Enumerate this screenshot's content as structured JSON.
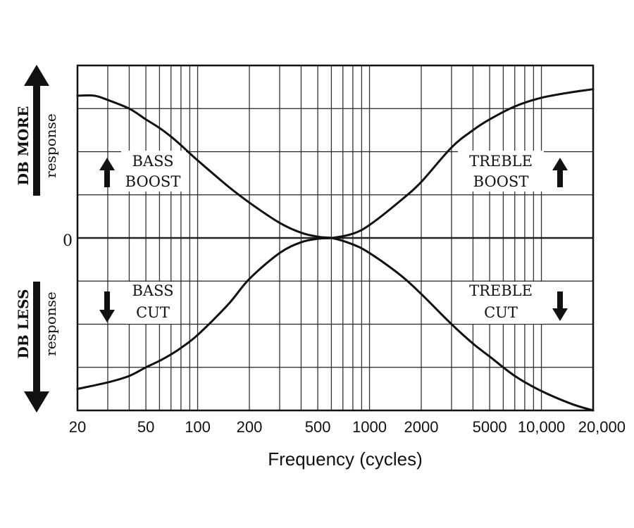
{
  "chart_data": {
    "type": "line",
    "xscale": "log",
    "xlim": [
      20,
      20000
    ],
    "ylim": [
      -4,
      4
    ],
    "grid": true,
    "xlabel": "Frequency (cycles)",
    "zero_label": "0",
    "x_tick_labels": [
      {
        "value": 20,
        "label": "20"
      },
      {
        "value": 50,
        "label": "50"
      },
      {
        "value": 100,
        "label": "100"
      },
      {
        "value": 200,
        "label": "200"
      },
      {
        "value": 500,
        "label": "500"
      },
      {
        "value": 1000,
        "label": "1000"
      },
      {
        "value": 2000,
        "label": "2000"
      },
      {
        "value": 5000,
        "label": "5000"
      },
      {
        "value": 10000,
        "label": "10,000"
      },
      {
        "value": 20000,
        "label": "20,000"
      }
    ],
    "x_grid_values": [
      20,
      30,
      40,
      50,
      60,
      70,
      80,
      90,
      100,
      200,
      300,
      400,
      500,
      600,
      700,
      800,
      900,
      1000,
      2000,
      3000,
      4000,
      5000,
      6000,
      7000,
      8000,
      9000,
      10000,
      20000
    ],
    "y_grid_values": [
      -4,
      -3,
      -2,
      -1,
      0,
      1,
      2,
      3,
      4
    ],
    "y_axis_upper": {
      "line1": "DB MORE",
      "line2": "response"
    },
    "y_axis_lower": {
      "line1": "DB LESS",
      "line2": "response"
    },
    "series": [
      {
        "name": "bass-boost",
        "x": [
          20,
          25,
          30,
          40,
          50,
          60,
          70,
          80,
          100,
          150,
          200,
          300,
          400,
          500,
          600
        ],
        "y": [
          3.3,
          3.3,
          3.2,
          3.0,
          2.75,
          2.55,
          2.35,
          2.15,
          1.8,
          1.2,
          0.82,
          0.35,
          0.12,
          0.03,
          0
        ]
      },
      {
        "name": "bass-cut",
        "x": [
          20,
          30,
          40,
          50,
          60,
          70,
          80,
          100,
          150,
          200,
          300,
          400,
          500,
          600
        ],
        "y": [
          -3.5,
          -3.35,
          -3.2,
          -3.0,
          -2.85,
          -2.7,
          -2.55,
          -2.25,
          -1.55,
          -0.95,
          -0.35,
          -0.1,
          -0.02,
          0
        ]
      },
      {
        "name": "treble-boost",
        "x": [
          500,
          600,
          800,
          1000,
          1500,
          2000,
          3000,
          4000,
          5000,
          7000,
          10000,
          15000,
          20000
        ],
        "y": [
          0,
          0,
          0.1,
          0.3,
          0.85,
          1.3,
          2.1,
          2.5,
          2.75,
          3.05,
          3.25,
          3.38,
          3.45
        ]
      },
      {
        "name": "treble-cut",
        "x": [
          500,
          600,
          800,
          1000,
          1500,
          2000,
          3000,
          4000,
          5000,
          7000,
          10000,
          15000,
          20000
        ],
        "y": [
          0,
          0,
          -0.15,
          -0.35,
          -0.85,
          -1.3,
          -2.0,
          -2.45,
          -2.75,
          -3.2,
          -3.55,
          -3.85,
          -4.0
        ]
      }
    ],
    "annotations": {
      "bass_boost": [
        "BASS",
        "BOOST"
      ],
      "bass_cut": [
        "BASS",
        "CUT"
      ],
      "treble_boost": [
        "TREBLE",
        "BOOST"
      ],
      "treble_cut": [
        "TREBLE",
        "CUT"
      ]
    }
  }
}
